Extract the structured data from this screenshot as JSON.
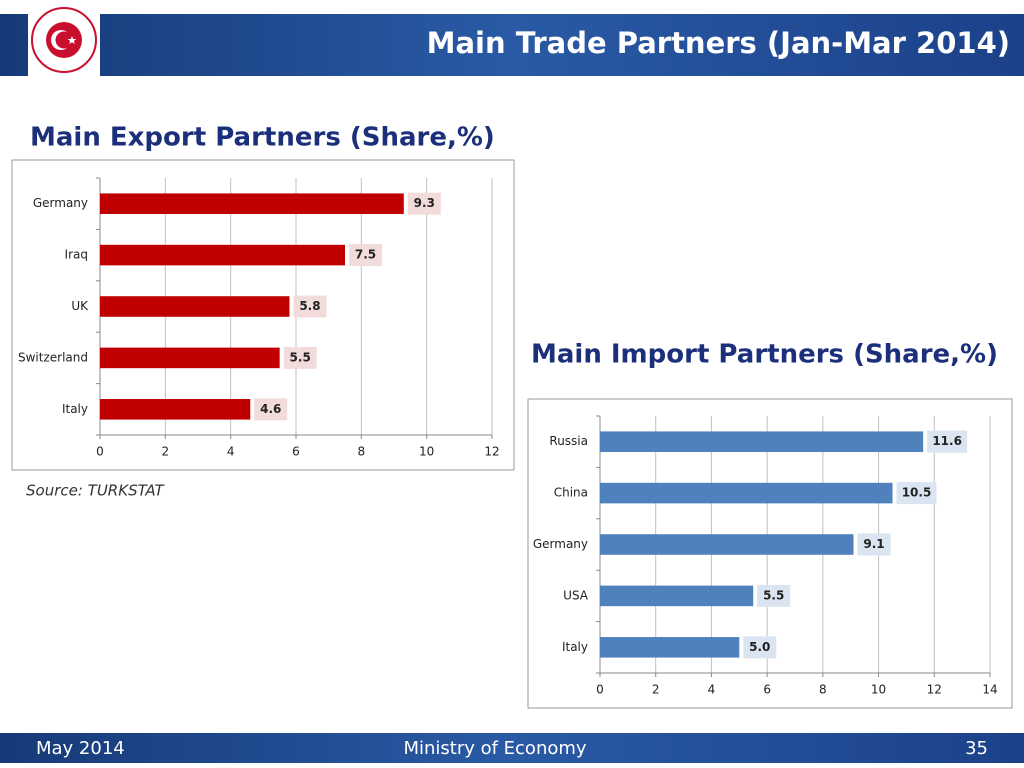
{
  "header": {
    "title": "Main Trade Partners (Jan-Mar 2014)"
  },
  "chart_data": [
    {
      "type": "bar",
      "orientation": "horizontal",
      "title": "Main Export Partners (Share,%)",
      "categories": [
        "Germany",
        "Iraq",
        "UK",
        "Switzerland",
        "Italy"
      ],
      "values": [
        9.3,
        7.5,
        5.8,
        5.5,
        4.6
      ],
      "value_labels": [
        "9.3",
        "7.5",
        "5.8",
        "5.5",
        "4.6"
      ],
      "color": "#c00000",
      "label_background": "#f2dcdb",
      "xlim": [
        0,
        12
      ],
      "xticks": [
        0,
        2,
        4,
        6,
        8,
        10,
        12
      ],
      "grid": true
    },
    {
      "type": "bar",
      "orientation": "horizontal",
      "title": "Main Import Partners (Share,%)",
      "categories": [
        "Russia",
        "China",
        "Germany",
        "USA",
        "Italy"
      ],
      "values": [
        11.6,
        10.5,
        9.1,
        5.5,
        5.0
      ],
      "value_labels": [
        "11.6",
        "10.5",
        "9.1",
        "5.5",
        "5.0"
      ],
      "color": "#4f81bd",
      "label_background": "#dbe5f1",
      "xlim": [
        0,
        14
      ],
      "xticks": [
        0,
        2,
        4,
        6,
        8,
        10,
        12,
        14
      ],
      "grid": true
    }
  ],
  "source": "Source: TURKSTAT",
  "footer": {
    "date": "May 2014",
    "organization": "Ministry of Economy",
    "page": "35"
  }
}
